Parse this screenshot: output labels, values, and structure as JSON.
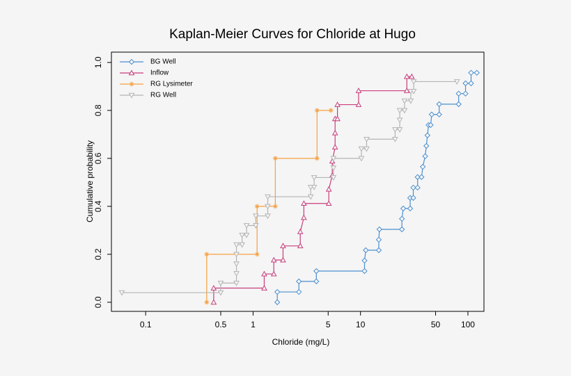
{
  "chart_data": {
    "type": "step",
    "title": "Kaplan-Meier Curves for Chloride at Hugo",
    "x_label": "Chloride (mg/L)",
    "y_label": "Cumulative probability",
    "x_scale": "log",
    "xlim": [
      0.048,
      141
    ],
    "ylim": [
      -0.038,
      1.043
    ],
    "xticks": [
      0.1,
      0.5,
      1,
      5,
      10,
      50,
      100
    ],
    "yticks": [
      {
        "value": 0,
        "label": "0.0"
      },
      0.2,
      0.4,
      0.6,
      0.8,
      {
        "value": 1,
        "label": "1.0"
      }
    ],
    "legend": "top-left",
    "series": [
      {
        "name": "BG Well",
        "color": "#4a8fd0",
        "marker": "diamond",
        "x": [
          1.68,
          1.68,
          2.67,
          2.67,
          3.88,
          3.88,
          10.9,
          10.9,
          11.2,
          14.8,
          14.8,
          15,
          24.3,
          24.3,
          25,
          29,
          29,
          31,
          31,
          34,
          34,
          37,
          38,
          40,
          41,
          42,
          43,
          45,
          46,
          54,
          54,
          82,
          82,
          95,
          95,
          107,
          107,
          121
        ],
        "values": [
          0,
          0.043,
          0.043,
          0.087,
          0.087,
          0.13,
          0.13,
          0.174,
          0.217,
          0.217,
          0.261,
          0.304,
          0.304,
          0.348,
          0.391,
          0.391,
          0.435,
          0.435,
          0.478,
          0.478,
          0.522,
          0.522,
          0.565,
          0.609,
          0.652,
          0.696,
          0.739,
          0.739,
          0.783,
          0.783,
          0.826,
          0.826,
          0.87,
          0.87,
          0.913,
          0.913,
          0.957,
          0.957
        ]
      },
      {
        "name": "Inflow",
        "color": "#c83c7c",
        "marker": "triangle-up",
        "x": [
          0.43,
          0.43,
          1.27,
          1.27,
          1.56,
          1.56,
          1.9,
          1.9,
          2.75,
          2.75,
          2.97,
          2.97,
          5.07,
          5.07,
          5.46,
          5.46,
          5.8,
          5.8,
          5.8,
          6.1,
          6.1,
          9.6,
          9.6,
          27,
          27,
          30
        ],
        "values": [
          0,
          0.059,
          0.059,
          0.118,
          0.118,
          0.176,
          0.176,
          0.235,
          0.235,
          0.294,
          0.353,
          0.412,
          0.412,
          0.471,
          0.529,
          0.588,
          0.647,
          0.706,
          0.765,
          0.765,
          0.824,
          0.824,
          0.882,
          0.882,
          0.941,
          0.941
        ]
      },
      {
        "name": "RG Lysimeter",
        "color": "#f5a040",
        "marker": "star",
        "x": [
          0.37,
          0.37,
          1.09,
          1.09,
          1.61,
          1.61,
          3.94,
          3.94,
          5.3
        ],
        "values": [
          0,
          0.2,
          0.2,
          0.4,
          0.4,
          0.6,
          0.6,
          0.8,
          0.8
        ]
      },
      {
        "name": "RG Well",
        "color": "#b4b4b4",
        "marker": "triangle-down",
        "x": [
          0.06,
          0.5,
          0.5,
          0.7,
          0.7,
          0.7,
          0.7,
          0.7,
          0.79,
          0.79,
          0.87,
          0.87,
          1.06,
          1.06,
          1.37,
          1.37,
          1.37,
          3.44,
          3.44,
          3.7,
          3.7,
          5.6,
          5.6,
          5.6,
          10.2,
          10.2,
          11.4,
          11.4,
          21,
          21,
          23.2,
          23.2,
          23.2,
          25.7,
          25.7,
          29.4,
          29.4,
          31.3,
          31.3,
          79
        ],
        "values": [
          0.04,
          0.04,
          0.08,
          0.08,
          0.12,
          0.16,
          0.2,
          0.24,
          0.24,
          0.28,
          0.28,
          0.32,
          0.32,
          0.36,
          0.36,
          0.4,
          0.44,
          0.44,
          0.48,
          0.48,
          0.52,
          0.52,
          0.56,
          0.6,
          0.6,
          0.64,
          0.64,
          0.68,
          0.68,
          0.72,
          0.72,
          0.76,
          0.8,
          0.8,
          0.84,
          0.84,
          0.88,
          0.88,
          0.92,
          0.92
        ]
      }
    ]
  }
}
